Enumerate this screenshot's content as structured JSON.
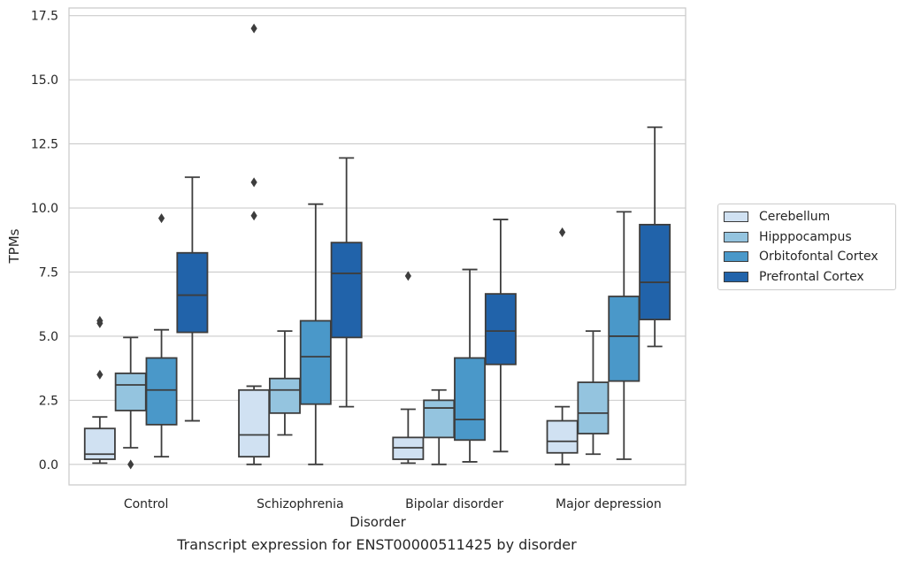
{
  "caption": "Transcript expression for ENST00000511425 by disorder",
  "chart_data": {
    "type": "boxplot",
    "xlabel": "Disorder",
    "ylabel": "TPMs",
    "ylim": [
      -0.8,
      17.8
    ],
    "yticks": [
      0.0,
      2.5,
      5.0,
      7.5,
      10.0,
      12.5,
      15.0,
      17.5
    ],
    "ytick_labels": [
      "0.0",
      "2.5",
      "5.0",
      "7.5",
      "10.0",
      "12.5",
      "15.0",
      "17.5"
    ],
    "grid": "horizontal",
    "legend_position": "right",
    "categories": [
      "Control",
      "Schizophrenia",
      "Bipolar disorder",
      "Major depression"
    ],
    "series": [
      {
        "name": "Cerebellum",
        "color": "#d0e1f2",
        "boxes": [
          {
            "whislo": 0.05,
            "q1": 0.2,
            "med": 0.4,
            "q3": 1.4,
            "whishi": 1.85,
            "fliers": []
          },
          {
            "whislo": 0.0,
            "q1": 0.3,
            "med": 1.15,
            "q3": 2.9,
            "whishi": 3.05,
            "fliers": []
          },
          {
            "whislo": 0.05,
            "q1": 0.2,
            "med": 0.65,
            "q3": 1.05,
            "whishi": 2.15,
            "fliers": [
              7.35
            ]
          },
          {
            "whislo": 0.0,
            "q1": 0.45,
            "med": 0.9,
            "q3": 1.7,
            "whishi": 2.25,
            "fliers": [
              9.05
            ]
          }
        ]
      },
      {
        "name": "Hipppocampus",
        "color": "#94c4df",
        "boxes": [
          {
            "whislo": 0.65,
            "q1": 2.1,
            "med": 3.1,
            "q3": 3.55,
            "whishi": 4.95,
            "fliers": [
              0.0
            ]
          },
          {
            "whislo": 1.15,
            "q1": 2.0,
            "med": 2.9,
            "q3": 3.35,
            "whishi": 5.2,
            "fliers": []
          },
          {
            "whislo": 0.0,
            "q1": 1.05,
            "med": 2.2,
            "q3": 2.5,
            "whishi": 2.9,
            "fliers": []
          },
          {
            "whislo": 0.4,
            "q1": 1.2,
            "med": 2.0,
            "q3": 3.2,
            "whishi": 5.2,
            "fliers": []
          }
        ]
      },
      {
        "name": "Orbitofontal Cortex",
        "color": "#4a98c9",
        "boxes": [
          {
            "whislo": 0.3,
            "q1": 1.55,
            "med": 2.9,
            "q3": 4.15,
            "whishi": 5.25,
            "fliers": [
              9.6
            ]
          },
          {
            "whislo": 0.0,
            "q1": 2.35,
            "med": 4.2,
            "q3": 5.6,
            "whishi": 10.15,
            "fliers": []
          },
          {
            "whislo": 0.1,
            "q1": 0.95,
            "med": 1.75,
            "q3": 4.15,
            "whishi": 7.6,
            "fliers": []
          },
          {
            "whislo": 0.2,
            "q1": 3.25,
            "med": 5.0,
            "q3": 6.55,
            "whishi": 9.85,
            "fliers": []
          }
        ]
      },
      {
        "name": "Prefrontal Cortex",
        "color": "#2163aa",
        "boxes": [
          {
            "whislo": 1.7,
            "q1": 5.15,
            "med": 6.6,
            "q3": 8.25,
            "whishi": 11.2,
            "fliers": []
          },
          {
            "whislo": 2.25,
            "q1": 4.95,
            "med": 7.45,
            "q3": 8.65,
            "whishi": 11.95,
            "fliers": []
          },
          {
            "whislo": 0.5,
            "q1": 3.9,
            "med": 5.2,
            "q3": 6.65,
            "whishi": 9.55,
            "fliers": []
          },
          {
            "whislo": 4.6,
            "q1": 5.65,
            "med": 7.1,
            "q3": 9.35,
            "whishi": 13.15,
            "fliers": []
          }
        ]
      }
    ],
    "outlier_extra": [
      {
        "category": 0,
        "series": 0,
        "value": 5.6
      },
      {
        "category": 0,
        "series": 0,
        "value": 5.5
      },
      {
        "category": 0,
        "series": 0,
        "value": 3.5
      },
      {
        "category": 1,
        "series": 0,
        "value": 17.0
      },
      {
        "category": 1,
        "series": 0,
        "value": 11.0
      },
      {
        "category": 1,
        "series": 0,
        "value": 9.7
      }
    ]
  }
}
